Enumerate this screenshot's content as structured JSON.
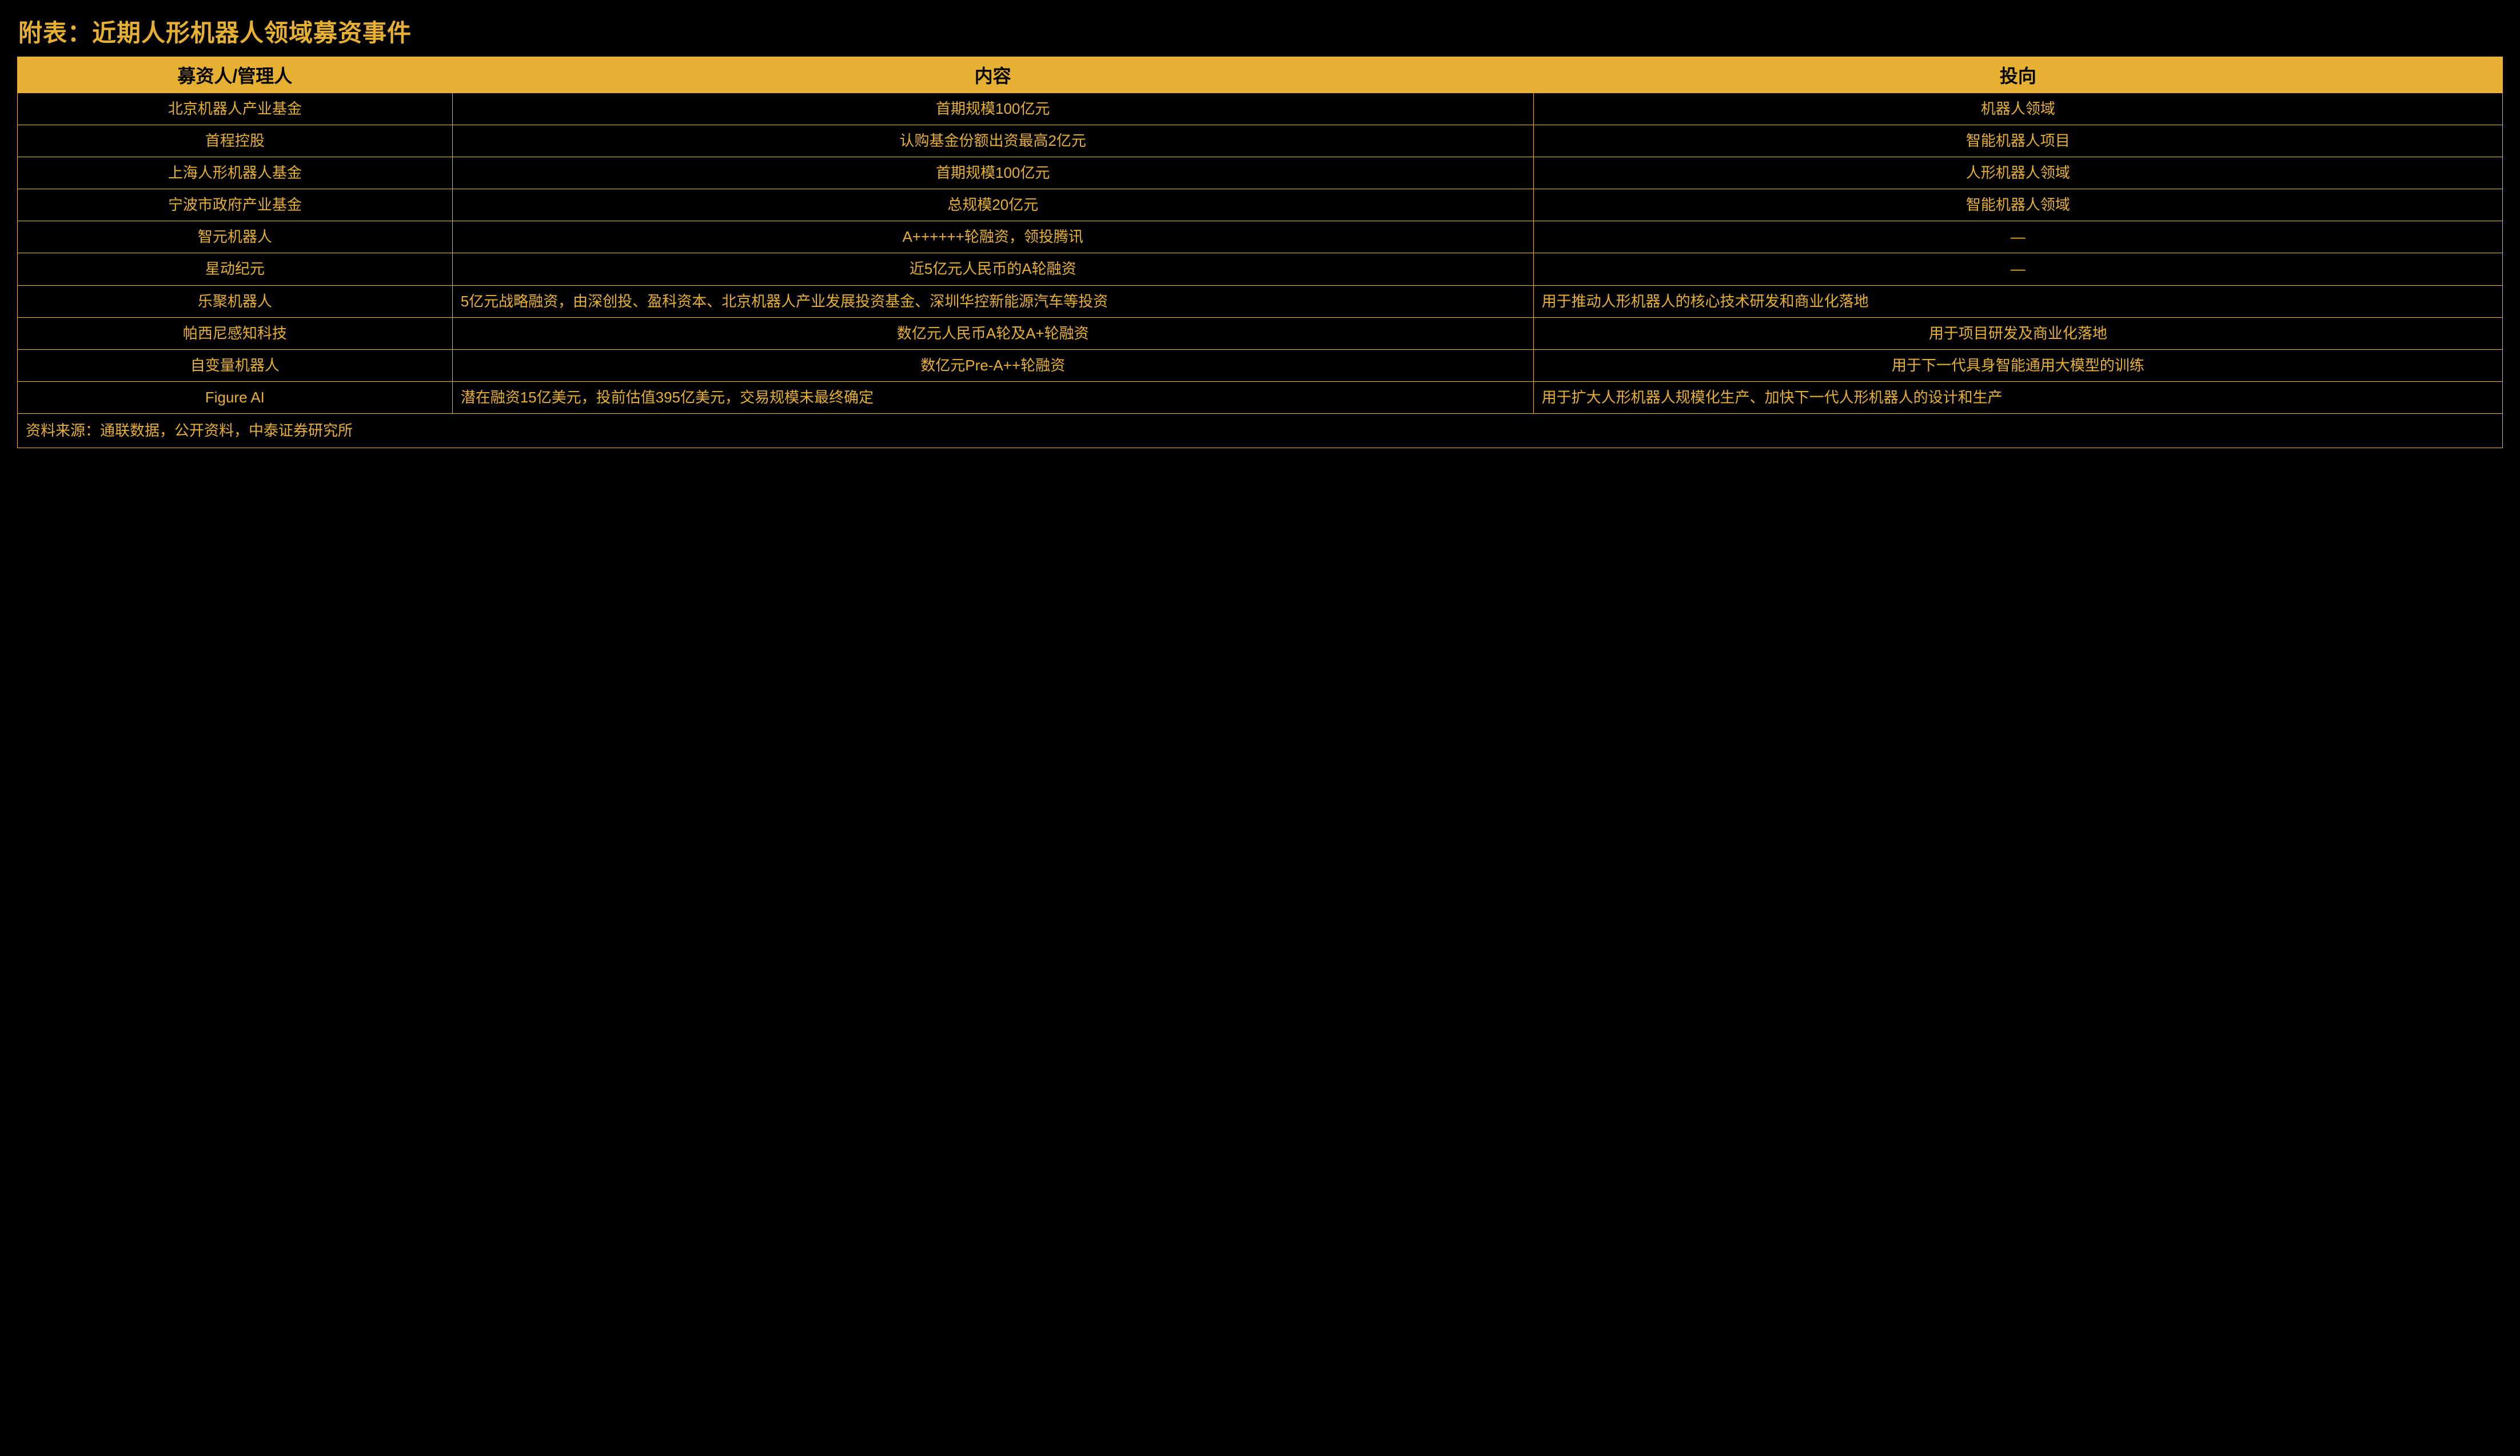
{
  "title": "附表：近期人形机器人领域募资事件",
  "table": {
    "columns": [
      "募资人/管理人",
      "内容",
      "投向"
    ],
    "rows": [
      {
        "manager": "北京机器人产业基金",
        "content": "首期规模100亿元",
        "direction": "机器人领域"
      },
      {
        "manager": "首程控股",
        "content": "认购基金份额出资最高2亿元",
        "direction": "智能机器人项目"
      },
      {
        "manager": "上海人形机器人基金",
        "content": "首期规模100亿元",
        "direction": "人形机器人领域"
      },
      {
        "manager": "宁波市政府产业基金",
        "content": "总规模20亿元",
        "direction": "智能机器人领域"
      },
      {
        "manager": "智元机器人",
        "content": "A++++++轮融资，领投腾讯",
        "direction": "—"
      },
      {
        "manager": "星动纪元",
        "content": "近5亿元人民币的A轮融资",
        "direction": "—"
      },
      {
        "manager": "乐聚机器人",
        "content": "5亿元战略融资，由深创投、盈科资本、北京机器人产业发展投资基金、深圳华控新能源汽车等投资",
        "direction": "用于推动人形机器人的核心技术研发和商业化落地"
      },
      {
        "manager": "帕西尼感知科技",
        "content": "数亿元人民币A轮及A+轮融资",
        "direction": "用于项目研发及商业化落地"
      },
      {
        "manager": "自变量机器人",
        "content": "数亿元Pre-A++轮融资",
        "direction": "用于下一代具身智能通用大模型的训练"
      },
      {
        "manager": "Figure AI",
        "content": "潜在融资15亿美元，投前估值395亿美元，交易规模未最终确定",
        "direction": "用于扩大人形机器人规模化生产、加快下一代人形机器人的设计和生产"
      }
    ],
    "source": "资料来源：通联数据，公开资料，中泰证券研究所"
  },
  "colors": {
    "accent": "#e6b033",
    "bg": "#000000"
  }
}
